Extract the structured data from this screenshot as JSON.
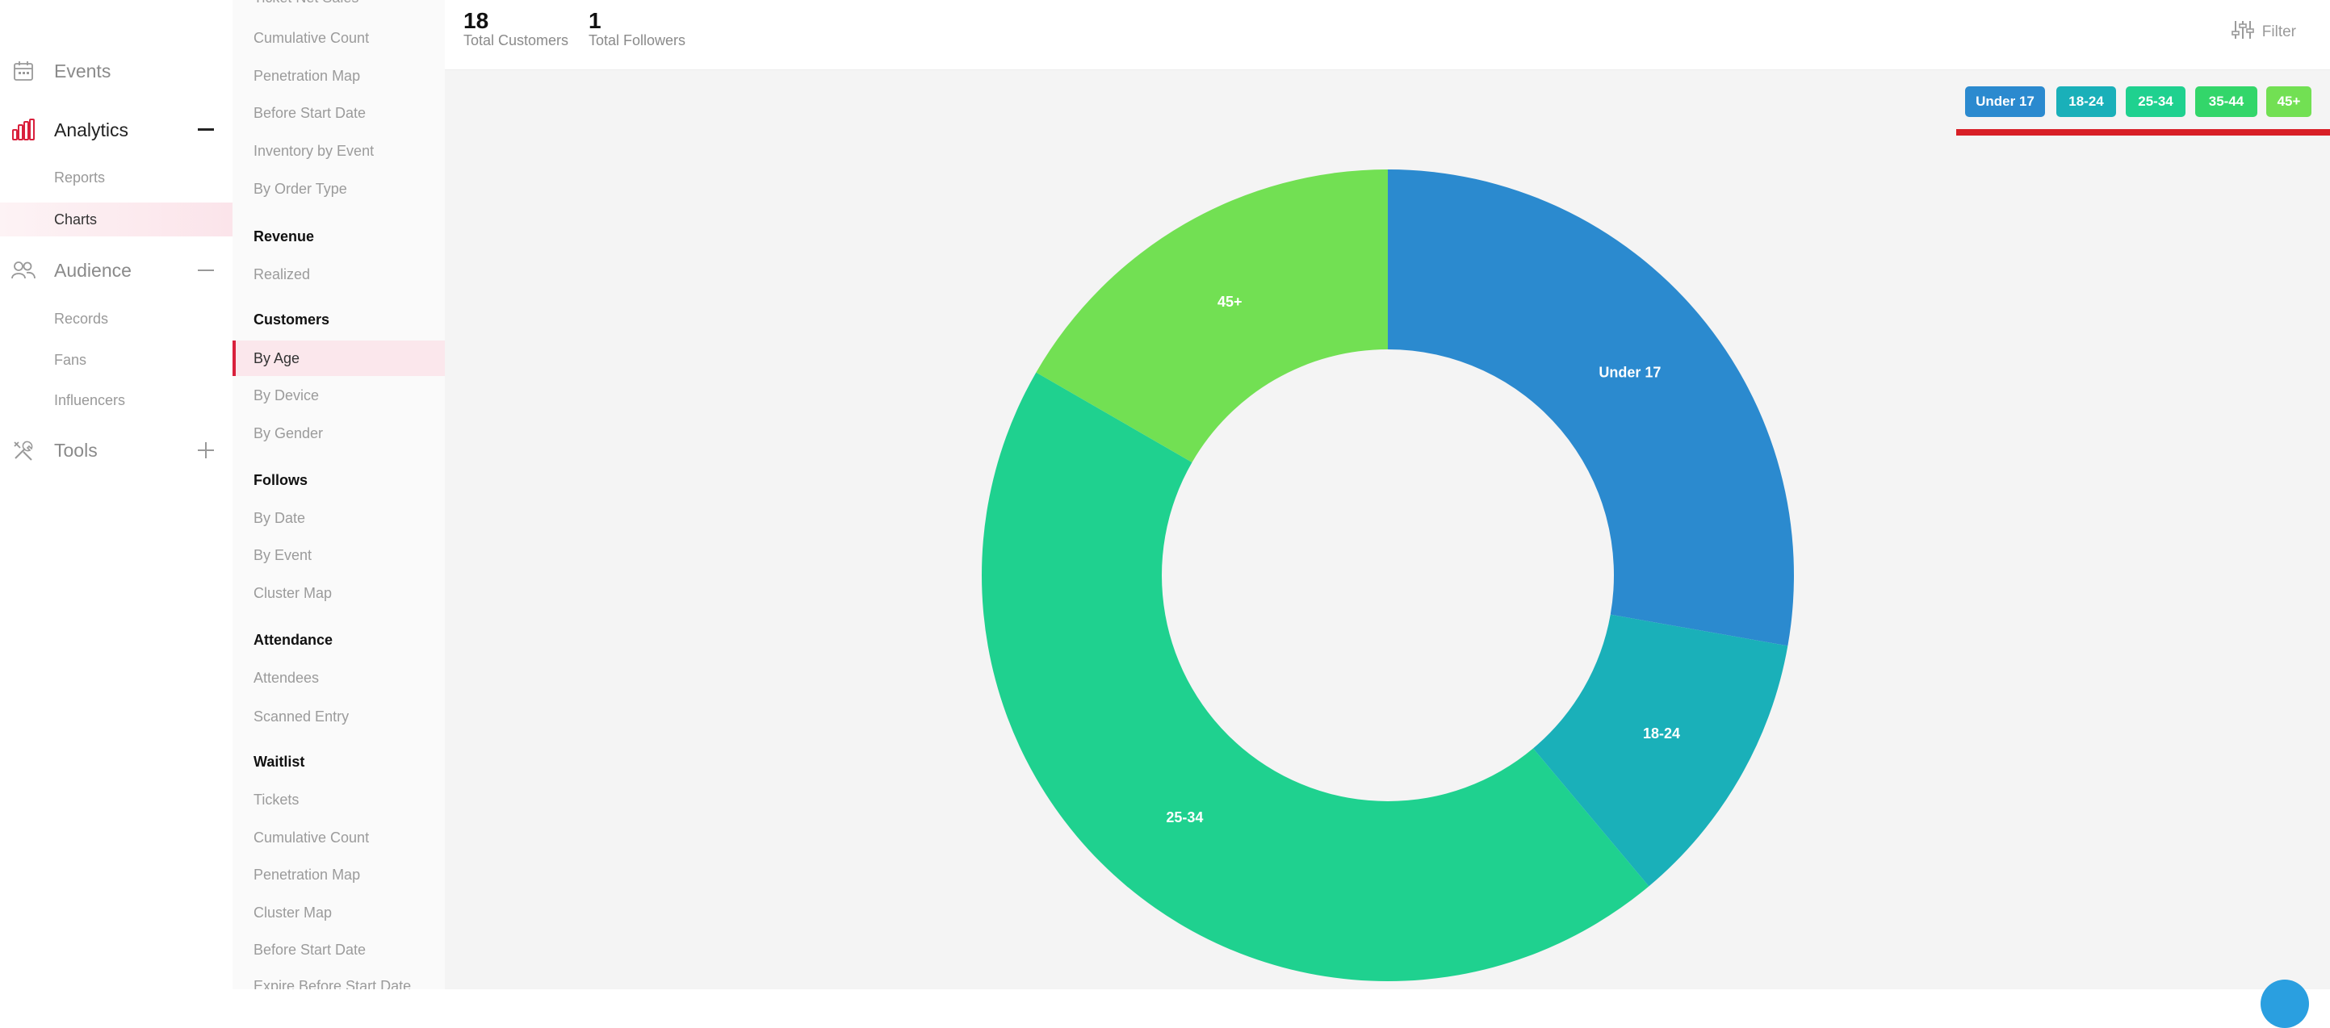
{
  "nav": {
    "events": {
      "label": "Events",
      "icon": "calendar-icon"
    },
    "analytics": {
      "label": "Analytics",
      "icon": "bar-chart-icon",
      "toggle": "collapse-minus-icon",
      "accent": "#d9203c"
    },
    "analytics_items": [
      {
        "label": "Reports"
      },
      {
        "label": "Charts",
        "active": true
      }
    ],
    "audience": {
      "label": "Audience",
      "icon": "people-icon",
      "toggle": "collapse-minus-icon"
    },
    "audience_items": [
      {
        "label": "Records"
      },
      {
        "label": "Fans"
      },
      {
        "label": "Influencers"
      }
    ],
    "tools": {
      "label": "Tools",
      "icon": "tools-icon",
      "toggle": "expand-plus-icon"
    }
  },
  "subnav": {
    "items": [
      {
        "label": "Ticket Net Sales",
        "type": "item"
      },
      {
        "label": "Cumulative Count",
        "type": "item"
      },
      {
        "label": "Penetration Map",
        "type": "item"
      },
      {
        "label": "Before Start Date",
        "type": "item"
      },
      {
        "label": "Inventory by Event",
        "type": "item"
      },
      {
        "label": "By Order Type",
        "type": "item"
      },
      {
        "label": "Revenue",
        "type": "head"
      },
      {
        "label": "Realized",
        "type": "item"
      },
      {
        "label": "Customers",
        "type": "head"
      },
      {
        "label": "By Age",
        "type": "item",
        "active": true
      },
      {
        "label": "By Device",
        "type": "item"
      },
      {
        "label": "By Gender",
        "type": "item"
      },
      {
        "label": "Follows",
        "type": "head"
      },
      {
        "label": "By Date",
        "type": "item"
      },
      {
        "label": "By Event",
        "type": "item"
      },
      {
        "label": "Cluster Map",
        "type": "item"
      },
      {
        "label": "Attendance",
        "type": "head"
      },
      {
        "label": "Attendees",
        "type": "item"
      },
      {
        "label": "Scanned Entry",
        "type": "item"
      },
      {
        "label": "Waitlist",
        "type": "head"
      },
      {
        "label": "Tickets",
        "type": "item"
      },
      {
        "label": "Cumulative Count",
        "type": "item"
      },
      {
        "label": "Penetration Map",
        "type": "item"
      },
      {
        "label": "Cluster Map",
        "type": "item"
      },
      {
        "label": "Before Start Date",
        "type": "item"
      },
      {
        "label": "Expire Before Start Date",
        "type": "item"
      }
    ]
  },
  "stats": {
    "customers": {
      "value": "18",
      "label": "Total Customers"
    },
    "followers": {
      "value": "1",
      "label": "Total Followers"
    }
  },
  "filter": {
    "label": "Filter",
    "icon": "sliders-icon"
  },
  "chart_data": {
    "type": "pie",
    "donut": true,
    "legend_position": "top-right",
    "categories": [
      "Under 17",
      "18-24",
      "25-34",
      "35-44",
      "45+"
    ],
    "values": [
      5,
      2,
      8,
      0,
      3
    ],
    "colors": [
      "#2b8acf",
      "#1ab0b9",
      "#1fd18f",
      "#33d66a",
      "#72e053"
    ]
  }
}
